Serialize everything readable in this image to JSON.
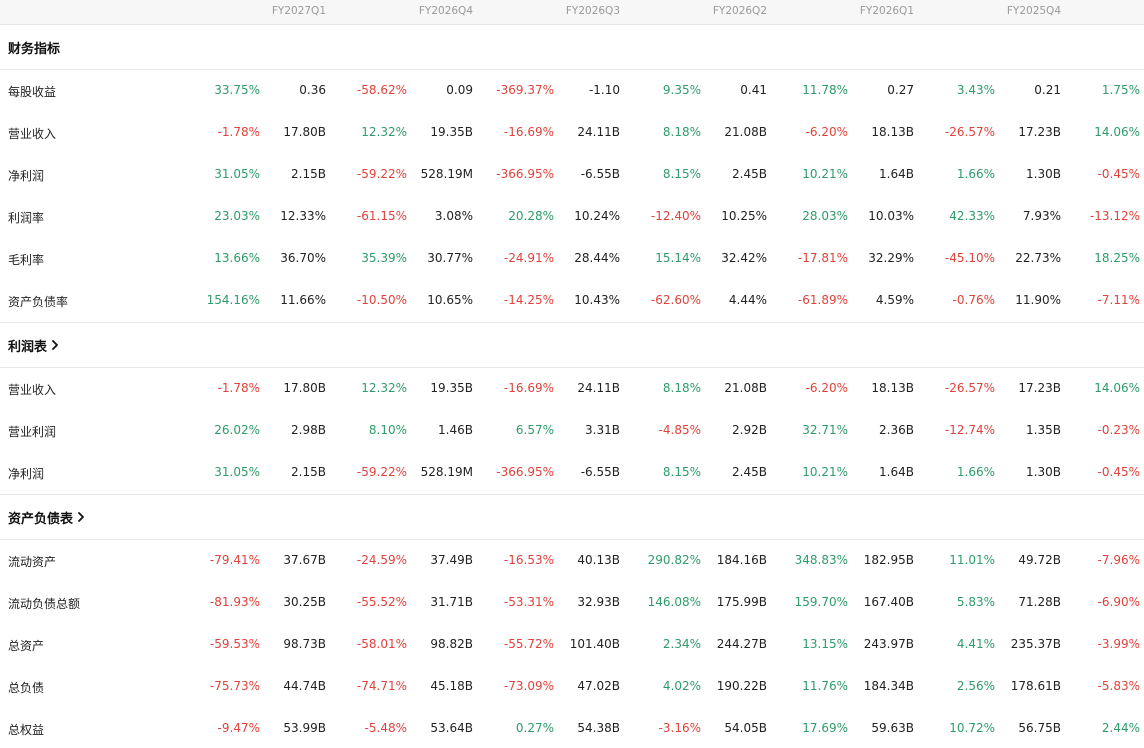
{
  "header": {
    "periods": [
      "FY2027Q1",
      "FY2026Q4",
      "FY2026Q3",
      "FY2026Q2",
      "FY2026Q1",
      "FY2025Q4"
    ]
  },
  "colors": {
    "positive": "#2e9c6a",
    "negative": "#e0423c",
    "header_bg": "#f7f7f7"
  },
  "sections": [
    {
      "title": "财务指标",
      "has_link": false,
      "rows": [
        {
          "label": "每股收益",
          "cells": [
            {
              "pct": "33.75%",
              "val": "0.36"
            },
            {
              "pct": "-58.62%",
              "val": "0.09"
            },
            {
              "pct": "-369.37%",
              "val": "-1.10"
            },
            {
              "pct": "9.35%",
              "val": "0.41"
            },
            {
              "pct": "11.78%",
              "val": "0.27"
            },
            {
              "pct": "3.43%",
              "val": "0.21"
            }
          ],
          "tail": "1.75%"
        },
        {
          "label": "营业收入",
          "cells": [
            {
              "pct": "-1.78%",
              "val": "17.80B"
            },
            {
              "pct": "12.32%",
              "val": "19.35B"
            },
            {
              "pct": "-16.69%",
              "val": "24.11B"
            },
            {
              "pct": "8.18%",
              "val": "21.08B"
            },
            {
              "pct": "-6.20%",
              "val": "18.13B"
            },
            {
              "pct": "-26.57%",
              "val": "17.23B"
            }
          ],
          "tail": "14.06%"
        },
        {
          "label": "净利润",
          "cells": [
            {
              "pct": "31.05%",
              "val": "2.15B"
            },
            {
              "pct": "-59.22%",
              "val": "528.19M"
            },
            {
              "pct": "-366.95%",
              "val": "-6.55B"
            },
            {
              "pct": "8.15%",
              "val": "2.45B"
            },
            {
              "pct": "10.21%",
              "val": "1.64B"
            },
            {
              "pct": "1.66%",
              "val": "1.30B"
            }
          ],
          "tail": "-0.45%"
        },
        {
          "label": "利润率",
          "cells": [
            {
              "pct": "23.03%",
              "val": "12.33%"
            },
            {
              "pct": "-61.15%",
              "val": "3.08%"
            },
            {
              "pct": "20.28%",
              "val": "10.24%"
            },
            {
              "pct": "-12.40%",
              "val": "10.25%"
            },
            {
              "pct": "28.03%",
              "val": "10.03%"
            },
            {
              "pct": "42.33%",
              "val": "7.93%"
            }
          ],
          "tail": "-13.12%"
        },
        {
          "label": "毛利率",
          "cells": [
            {
              "pct": "13.66%",
              "val": "36.70%"
            },
            {
              "pct": "35.39%",
              "val": "30.77%"
            },
            {
              "pct": "-24.91%",
              "val": "28.44%"
            },
            {
              "pct": "15.14%",
              "val": "32.42%"
            },
            {
              "pct": "-17.81%",
              "val": "32.29%"
            },
            {
              "pct": "-45.10%",
              "val": "22.73%"
            }
          ],
          "tail": "18.25%"
        },
        {
          "label": "资产负债率",
          "cells": [
            {
              "pct": "154.16%",
              "val": "11.66%"
            },
            {
              "pct": "-10.50%",
              "val": "10.65%"
            },
            {
              "pct": "-14.25%",
              "val": "10.43%"
            },
            {
              "pct": "-62.60%",
              "val": "4.44%"
            },
            {
              "pct": "-61.89%",
              "val": "4.59%"
            },
            {
              "pct": "-0.76%",
              "val": "11.90%"
            }
          ],
          "tail": "-7.11%"
        }
      ]
    },
    {
      "title": "利润表",
      "has_link": true,
      "rows": [
        {
          "label": "营业收入",
          "cells": [
            {
              "pct": "-1.78%",
              "val": "17.80B"
            },
            {
              "pct": "12.32%",
              "val": "19.35B"
            },
            {
              "pct": "-16.69%",
              "val": "24.11B"
            },
            {
              "pct": "8.18%",
              "val": "21.08B"
            },
            {
              "pct": "-6.20%",
              "val": "18.13B"
            },
            {
              "pct": "-26.57%",
              "val": "17.23B"
            }
          ],
          "tail": "14.06%"
        },
        {
          "label": "营业利润",
          "cells": [
            {
              "pct": "26.02%",
              "val": "2.98B"
            },
            {
              "pct": "8.10%",
              "val": "1.46B"
            },
            {
              "pct": "6.57%",
              "val": "3.31B"
            },
            {
              "pct": "-4.85%",
              "val": "2.92B"
            },
            {
              "pct": "32.71%",
              "val": "2.36B"
            },
            {
              "pct": "-12.74%",
              "val": "1.35B"
            }
          ],
          "tail": "-0.23%"
        },
        {
          "label": "净利润",
          "cells": [
            {
              "pct": "31.05%",
              "val": "2.15B"
            },
            {
              "pct": "-59.22%",
              "val": "528.19M"
            },
            {
              "pct": "-366.95%",
              "val": "-6.55B"
            },
            {
              "pct": "8.15%",
              "val": "2.45B"
            },
            {
              "pct": "10.21%",
              "val": "1.64B"
            },
            {
              "pct": "1.66%",
              "val": "1.30B"
            }
          ],
          "tail": "-0.45%"
        }
      ]
    },
    {
      "title": "资产负债表",
      "has_link": true,
      "rows": [
        {
          "label": "流动资产",
          "cells": [
            {
              "pct": "-79.41%",
              "val": "37.67B"
            },
            {
              "pct": "-24.59%",
              "val": "37.49B"
            },
            {
              "pct": "-16.53%",
              "val": "40.13B"
            },
            {
              "pct": "290.82%",
              "val": "184.16B"
            },
            {
              "pct": "348.83%",
              "val": "182.95B"
            },
            {
              "pct": "11.01%",
              "val": "49.72B"
            }
          ],
          "tail": "-7.96%"
        },
        {
          "label": "流动负债总额",
          "cells": [
            {
              "pct": "-81.93%",
              "val": "30.25B"
            },
            {
              "pct": "-55.52%",
              "val": "31.71B"
            },
            {
              "pct": "-53.31%",
              "val": "32.93B"
            },
            {
              "pct": "146.08%",
              "val": "175.99B"
            },
            {
              "pct": "159.70%",
              "val": "167.40B"
            },
            {
              "pct": "5.83%",
              "val": "71.28B"
            }
          ],
          "tail": "-6.90%"
        },
        {
          "label": "总资产",
          "cells": [
            {
              "pct": "-59.53%",
              "val": "98.73B"
            },
            {
              "pct": "-58.01%",
              "val": "98.82B"
            },
            {
              "pct": "-55.72%",
              "val": "101.40B"
            },
            {
              "pct": "2.34%",
              "val": "244.27B"
            },
            {
              "pct": "13.15%",
              "val": "243.97B"
            },
            {
              "pct": "4.41%",
              "val": "235.37B"
            }
          ],
          "tail": "-3.99%"
        },
        {
          "label": "总负债",
          "cells": [
            {
              "pct": "-75.73%",
              "val": "44.74B"
            },
            {
              "pct": "-74.71%",
              "val": "45.18B"
            },
            {
              "pct": "-73.09%",
              "val": "47.02B"
            },
            {
              "pct": "4.02%",
              "val": "190.22B"
            },
            {
              "pct": "11.76%",
              "val": "184.34B"
            },
            {
              "pct": "2.56%",
              "val": "178.61B"
            }
          ],
          "tail": "-5.83%"
        },
        {
          "label": "总权益",
          "cells": [
            {
              "pct": "-9.47%",
              "val": "53.99B"
            },
            {
              "pct": "-5.48%",
              "val": "53.64B"
            },
            {
              "pct": "0.27%",
              "val": "54.38B"
            },
            {
              "pct": "-3.16%",
              "val": "54.05B"
            },
            {
              "pct": "17.69%",
              "val": "59.63B"
            },
            {
              "pct": "10.72%",
              "val": "56.75B"
            }
          ],
          "tail": "2.44%"
        }
      ]
    }
  ]
}
